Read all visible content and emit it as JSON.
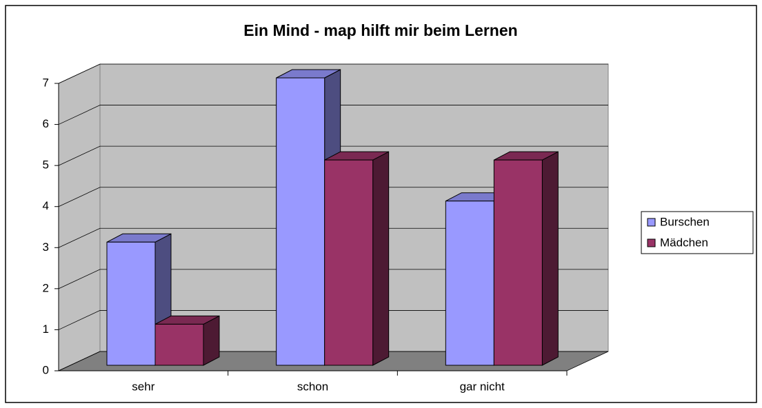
{
  "chart_data": {
    "type": "bar3d",
    "title": "Ein Mind - map hilft mir beim Lernen",
    "categories": [
      "sehr",
      "schon",
      "gar nicht"
    ],
    "series": [
      {
        "name": "Burschen",
        "color": "#9999ff",
        "values": [
          3,
          7,
          4
        ]
      },
      {
        "name": "Mädchen",
        "color": "#993366",
        "values": [
          1,
          5,
          5
        ]
      }
    ],
    "ylim": [
      0,
      7
    ],
    "yticks": [
      0,
      1,
      2,
      3,
      4,
      5,
      6,
      7
    ],
    "grid": true,
    "legend": "right"
  }
}
